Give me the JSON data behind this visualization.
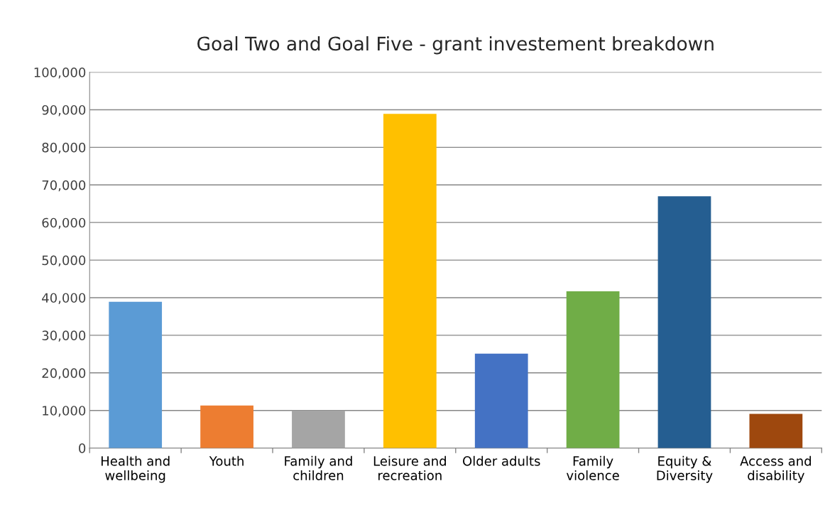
{
  "chart_data": {
    "type": "bar",
    "title": "Goal Two and Goal Five - grant investement breakdown",
    "categories": [
      "Health and\nwellbeing",
      "Youth",
      "Family and\nchildren",
      "Leisure and\nrecreation",
      "Older adults",
      "Family\nviolence",
      "Equity &\nDiversity",
      "Access and\ndisability"
    ],
    "values": [
      38900,
      11300,
      10000,
      88900,
      25100,
      41700,
      67000,
      9100
    ],
    "colors": [
      "#5b9bd5",
      "#ed7d31",
      "#a5a5a5",
      "#ffc000",
      "#4472c4",
      "#70ad47",
      "#255e91",
      "#9e480e"
    ],
    "ylim": [
      0,
      100000
    ],
    "yticks": [
      {
        "value": 0,
        "label": "0"
      },
      {
        "value": 10000,
        "label": "10,000"
      },
      {
        "value": 20000,
        "label": "20,000"
      },
      {
        "value": 30000,
        "label": "30,000"
      },
      {
        "value": 40000,
        "label": "40,000"
      },
      {
        "value": 50000,
        "label": "50,000"
      },
      {
        "value": 60000,
        "label": "60,000"
      },
      {
        "value": 70000,
        "label": "70,000"
      },
      {
        "value": 80000,
        "label": "80,000"
      },
      {
        "value": 90000,
        "label": "90,000"
      },
      {
        "value": 100000,
        "label": "100,000"
      }
    ],
    "grid": "y",
    "legend": false
  }
}
